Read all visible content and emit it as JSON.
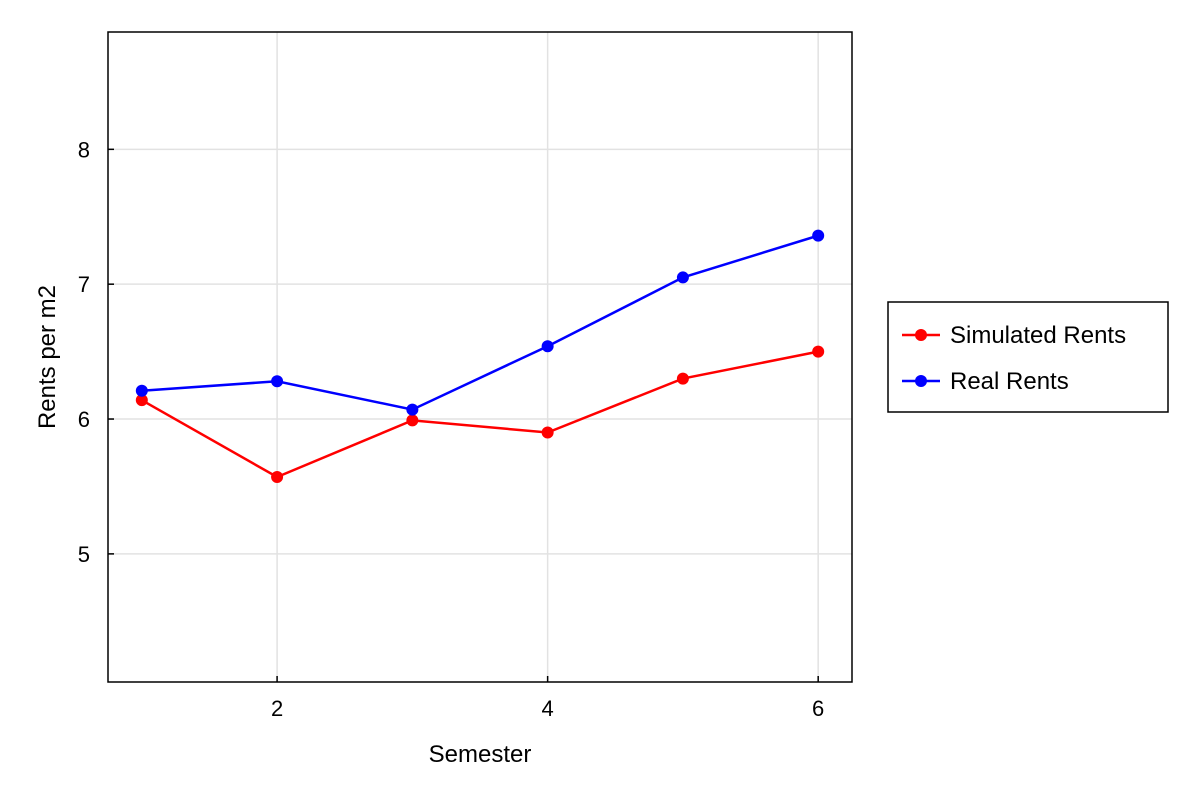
{
  "chart_data": {
    "type": "line",
    "title": "",
    "xlabel": "Semester",
    "ylabel": "Rents per m2",
    "xlim": [
      0.75,
      6.25
    ],
    "ylim": [
      4.05,
      8.87
    ],
    "xticks": [
      2,
      4,
      6
    ],
    "yticks": [
      5,
      6,
      7,
      8
    ],
    "grid": true,
    "legend_position": "right",
    "x": [
      1,
      2,
      3,
      4,
      5,
      6
    ],
    "series": [
      {
        "name": "Simulated Rents",
        "color": "#ff0000",
        "values": [
          6.14,
          5.57,
          5.99,
          5.9,
          6.3,
          6.5
        ]
      },
      {
        "name": "Real Rents",
        "color": "#0000ff",
        "values": [
          6.21,
          6.28,
          6.07,
          6.54,
          7.05,
          7.36
        ]
      }
    ]
  }
}
